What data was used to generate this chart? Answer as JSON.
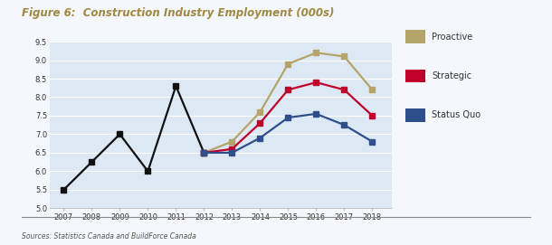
{
  "title": "Figure 6:  Construction Industry Employment (000s)",
  "title_color": "#A08840",
  "source_text": "Sources: Statistics Canada and BuildForce Canada",
  "ylim": [
    5.0,
    9.5
  ],
  "yticks": [
    5.0,
    5.5,
    6.0,
    6.5,
    7.0,
    7.5,
    8.0,
    8.5,
    9.0,
    9.5
  ],
  "historical_years": [
    2007,
    2008,
    2009,
    2010,
    2011,
    2012
  ],
  "historical_values": [
    5.5,
    6.25,
    7.0,
    6.0,
    8.3,
    6.5
  ],
  "historical_color": "#111111",
  "proactive_years": [
    2012,
    2013,
    2014,
    2015,
    2016,
    2017,
    2018
  ],
  "proactive_values": [
    6.5,
    6.8,
    7.6,
    8.9,
    9.2,
    9.1,
    8.2
  ],
  "proactive_color": "#B5A469",
  "strategic_years": [
    2012,
    2013,
    2014,
    2015,
    2016,
    2017,
    2018
  ],
  "strategic_values": [
    6.5,
    6.6,
    7.3,
    8.2,
    8.4,
    8.2,
    7.5
  ],
  "strategic_color": "#C0002A",
  "status_quo_years": [
    2012,
    2013,
    2014,
    2015,
    2016,
    2017,
    2018
  ],
  "status_quo_values": [
    6.5,
    6.5,
    6.9,
    7.45,
    7.55,
    7.25,
    6.8
  ],
  "status_quo_color": "#2E4E8C",
  "plot_bg_color": "#dce9f5",
  "fig_bg_color": "#f4f7fb",
  "grid_color": "#ffffff",
  "marker_size": 4,
  "line_width": 1.6,
  "legend_labels": [
    "Proactive",
    "Strategic",
    "Status Quo"
  ],
  "legend_colors": [
    "#B5A469",
    "#C0002A",
    "#2E4E8C"
  ]
}
